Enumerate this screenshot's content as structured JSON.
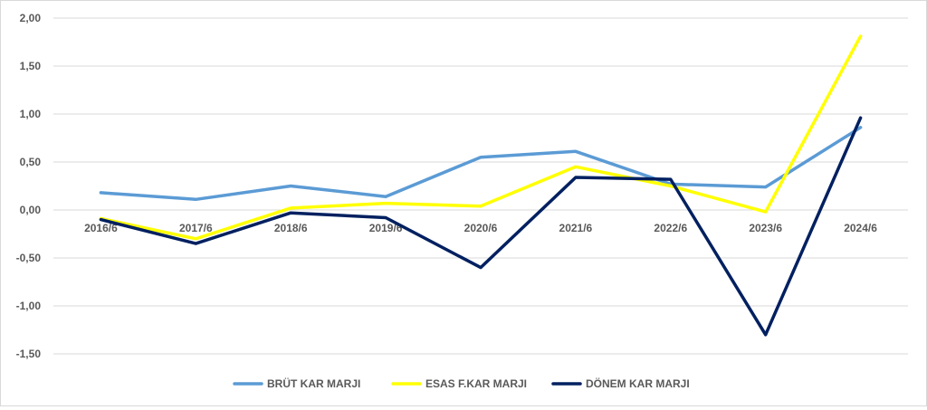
{
  "chart_data": {
    "type": "line",
    "title": "",
    "xlabel": "",
    "ylabel": "",
    "categories": [
      "2016/6",
      "2017/6",
      "2018/6",
      "2019/6",
      "2020/6",
      "2021/6",
      "2022/6",
      "2023/6",
      "2024/6"
    ],
    "y_ticks": [
      "2,00",
      "1,50",
      "1,00",
      "0,50",
      "0,00",
      "-0,50",
      "-1,00",
      "-1,50"
    ],
    "ylim": [
      -1.5,
      2.0
    ],
    "grid": true,
    "legend_position": "bottom",
    "series": [
      {
        "name": "BRÜT KAR MARJI",
        "color": "#5b9bd5",
        "values": [
          0.18,
          0.11,
          0.25,
          0.14,
          0.55,
          0.61,
          0.27,
          0.24,
          0.86
        ]
      },
      {
        "name": "ESAS F.KAR MARJI",
        "color": "#ffff00",
        "values": [
          -0.09,
          -0.3,
          0.02,
          0.07,
          0.04,
          0.45,
          0.25,
          -0.02,
          1.81
        ]
      },
      {
        "name": "DÖNEM KAR MARJI",
        "color": "#002060",
        "values": [
          -0.1,
          -0.35,
          -0.03,
          -0.08,
          -0.6,
          0.34,
          0.32,
          -1.3,
          0.96
        ]
      }
    ]
  }
}
